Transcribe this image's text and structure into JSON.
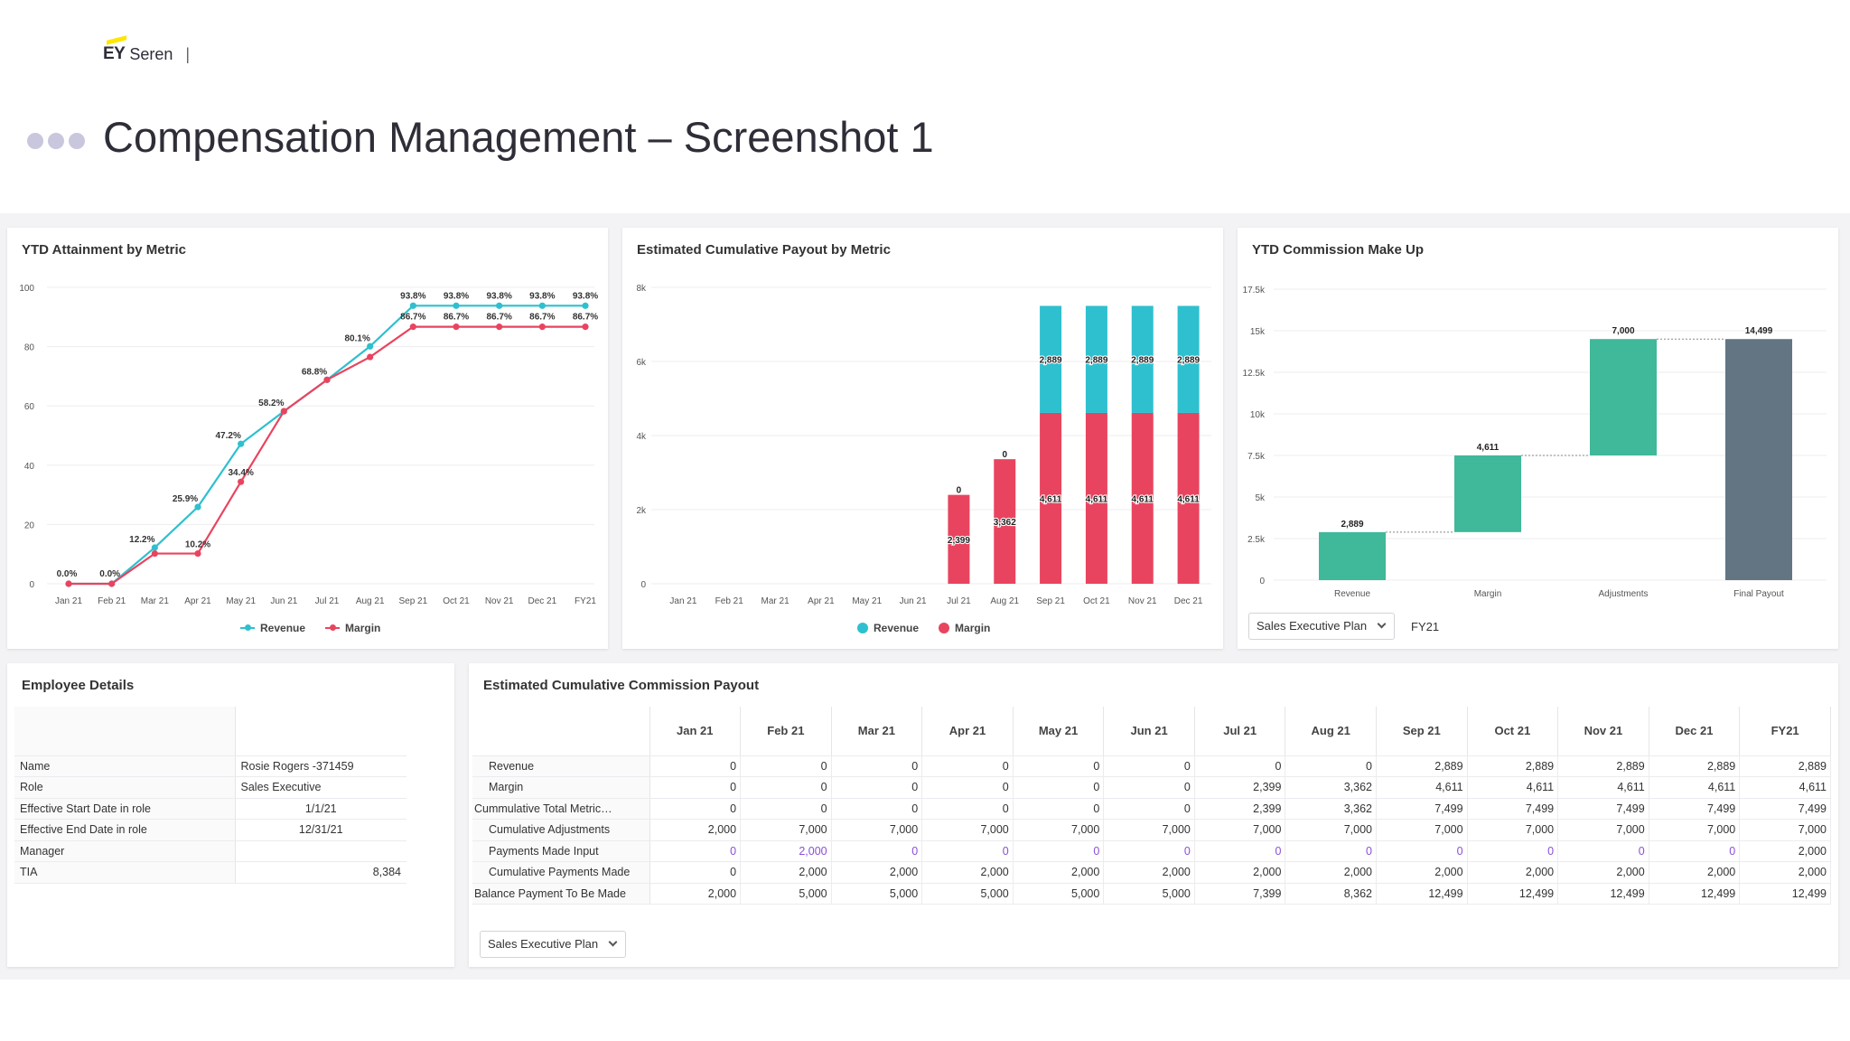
{
  "header": {
    "logo_ey": "EY",
    "logo_product": "Seren",
    "logo_separator": "|",
    "title": "Compensation Management – Screenshot 1"
  },
  "colors": {
    "revenue": "#2ec0cf",
    "margin": "#e9445f",
    "teal_bar": "#40b89a",
    "final_bar": "#637583"
  },
  "charts": {
    "attainment": {
      "title": "YTD Attainment by Metric",
      "chart_data": {
        "type": "line",
        "x": [
          "Jan 21",
          "Feb 21",
          "Mar 21",
          "Apr 21",
          "May 21",
          "Jun 21",
          "Jul 21",
          "Aug 21",
          "Sep 21",
          "Oct 21",
          "Nov 21",
          "Dec 21",
          "FY21"
        ],
        "yticks": [
          0,
          20,
          40,
          60,
          80,
          100
        ],
        "ylim": [
          0,
          100
        ],
        "series": [
          {
            "name": "Revenue",
            "values": [
              0,
              0,
              12.2,
              25.9,
              47.2,
              58.2,
              68.8,
              80.1,
              93.8,
              93.8,
              93.8,
              93.8,
              93.8
            ],
            "labels": [
              "0.0%",
              "0.0%",
              "12.2%",
              "25.9%",
              "47.2%",
              "58.2%",
              "68.8%",
              "80.1%",
              "93.8%",
              "93.8%",
              "93.8%",
              "93.8%",
              "93.8%"
            ]
          },
          {
            "name": "Margin",
            "values": [
              0,
              0,
              10.2,
              10.2,
              34.4,
              58.2,
              68.8,
              76.5,
              86.7,
              86.7,
              86.7,
              86.7,
              86.7
            ],
            "labels": [
              "",
              "",
              "",
              "10.2%",
              "34.4%",
              "",
              "",
              "",
              "86.7%",
              "86.7%",
              "86.7%",
              "86.7%",
              "86.7%"
            ]
          }
        ],
        "legend": "bottom-center"
      }
    },
    "payout": {
      "title": "Estimated Cumulative Payout by Metric",
      "chart_data": {
        "type": "bar",
        "stacked": true,
        "categories": [
          "Jan 21",
          "Feb 21",
          "Mar 21",
          "Apr 21",
          "May 21",
          "Jun 21",
          "Jul 21",
          "Aug 21",
          "Sep 21",
          "Oct 21",
          "Nov 21",
          "Dec 21"
        ],
        "yticks": [
          0,
          2000,
          4000,
          6000,
          8000
        ],
        "ytick_labels": [
          "0",
          "2k",
          "4k",
          "6k",
          "8k"
        ],
        "ylim": [
          0,
          8000
        ],
        "series": [
          {
            "name": "Margin",
            "values": [
              0,
              0,
              0,
              0,
              0,
              0,
              2399,
              3362,
              4611,
              4611,
              4611,
              4611
            ],
            "labels": [
              "",
              "",
              "",
              "",
              "",
              "",
              "2,399",
              "3,362",
              "4,611",
              "4,611",
              "4,611",
              "4,611"
            ]
          },
          {
            "name": "Revenue",
            "values": [
              0,
              0,
              0,
              0,
              0,
              0,
              0,
              0,
              2889,
              2889,
              2889,
              2889
            ],
            "labels": [
              "",
              "",
              "",
              "",
              "",
              "",
              "0",
              "0",
              "2,889",
              "2,889",
              "2,889",
              "2,889"
            ]
          }
        ],
        "legend_order": [
          "Revenue",
          "Margin"
        ],
        "legend": "bottom-center"
      }
    },
    "makeup": {
      "title": "YTD Commission Make Up",
      "chart_data": {
        "type": "bar",
        "subtype": "waterfall",
        "categories": [
          "Revenue",
          "Margin",
          "Adjustments",
          "Final Payout"
        ],
        "values": [
          2889,
          4611,
          7000,
          14499
        ],
        "labels": [
          "2,889",
          "4,611",
          "7,000",
          "14,499"
        ],
        "is_total": [
          false,
          false,
          false,
          true
        ],
        "yticks": [
          0,
          2500,
          5000,
          7500,
          10000,
          12500,
          15000,
          17500
        ],
        "ytick_labels": [
          "0",
          "2.5k",
          "5k",
          "7.5k",
          "10k",
          "12.5k",
          "15k",
          "17.5k"
        ],
        "ylim": [
          0,
          17500
        ]
      },
      "plan_select": "Sales Executive Plan",
      "period": "FY21"
    }
  },
  "employee": {
    "title": "Employee Details",
    "rows": [
      {
        "label": "Name",
        "value": "Rosie Rogers -371459"
      },
      {
        "label": "Role",
        "value": "Sales Executive"
      },
      {
        "label": "Effective Start Date in role",
        "value": "1/1/21"
      },
      {
        "label": "Effective End Date in role",
        "value": "12/31/21"
      },
      {
        "label": "Manager",
        "value": ""
      },
      {
        "label": "TIA",
        "value": "8,384"
      }
    ]
  },
  "commission": {
    "title": "Estimated Cumulative Commission Payout",
    "columns": [
      "Jan 21",
      "Feb 21",
      "Mar 21",
      "Apr 21",
      "May 21",
      "Jun 21",
      "Jul 21",
      "Aug 21",
      "Sep 21",
      "Oct 21",
      "Nov 21",
      "Dec 21",
      "FY21"
    ],
    "rows": [
      {
        "label": "Revenue",
        "values": [
          "0",
          "0",
          "0",
          "0",
          "0",
          "0",
          "0",
          "0",
          "2,889",
          "2,889",
          "2,889",
          "2,889",
          "2,889"
        ]
      },
      {
        "label": "Margin",
        "values": [
          "0",
          "0",
          "0",
          "0",
          "0",
          "0",
          "2,399",
          "3,362",
          "4,611",
          "4,611",
          "4,611",
          "4,611",
          "4,611"
        ]
      },
      {
        "label": "Cummulative Total Metric…",
        "values": [
          "0",
          "0",
          "0",
          "0",
          "0",
          "0",
          "2,399",
          "3,362",
          "7,499",
          "7,499",
          "7,499",
          "7,499",
          "7,499"
        ]
      },
      {
        "label": "Cumulative Adjustments",
        "values": [
          "2,000",
          "7,000",
          "7,000",
          "7,000",
          "7,000",
          "7,000",
          "7,000",
          "7,000",
          "7,000",
          "7,000",
          "7,000",
          "7,000",
          "7,000"
        ]
      },
      {
        "label": "Payments Made Input",
        "values": [
          "0",
          "2,000",
          "0",
          "0",
          "0",
          "0",
          "0",
          "0",
          "0",
          "0",
          "0",
          "0",
          "2,000"
        ]
      },
      {
        "label": "Cumulative Payments Made",
        "values": [
          "0",
          "2,000",
          "2,000",
          "2,000",
          "2,000",
          "2,000",
          "2,000",
          "2,000",
          "2,000",
          "2,000",
          "2,000",
          "2,000",
          "2,000"
        ]
      },
      {
        "label": "Balance Payment To Be Made",
        "values": [
          "2,000",
          "5,000",
          "5,000",
          "5,000",
          "5,000",
          "5,000",
          "7,399",
          "8,362",
          "12,499",
          "12,499",
          "12,499",
          "12,499",
          "12,499"
        ]
      }
    ],
    "plan_select": "Sales Executive Plan"
  }
}
